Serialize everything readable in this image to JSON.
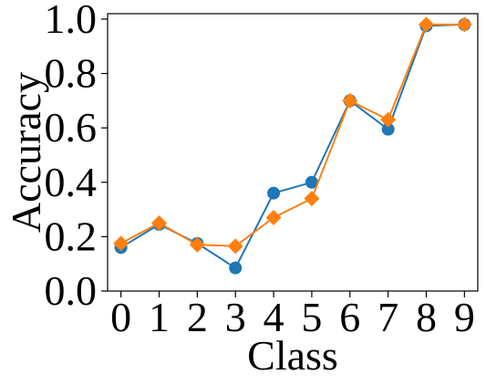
{
  "chart_data": {
    "type": "line",
    "xlabel": "Class",
    "ylabel": "Accuracy",
    "x": [
      0,
      1,
      2,
      3,
      4,
      5,
      6,
      7,
      8,
      9
    ],
    "xlim": [
      -0.35,
      9.35
    ],
    "ylim": [
      0.0,
      1.02
    ],
    "yticks": [
      0.0,
      0.2,
      0.4,
      0.6,
      0.8,
      1.0
    ],
    "ytick_labels": [
      "0.0",
      "0.2",
      "0.4",
      "0.6",
      "0.8",
      "1.0"
    ],
    "xtick_labels": [
      "0",
      "1",
      "2",
      "3",
      "4",
      "5",
      "6",
      "7",
      "8",
      "9"
    ],
    "grid": false,
    "series": [
      {
        "marker": "circle",
        "color": "#1f77b4",
        "values": [
          0.16,
          0.245,
          0.175,
          0.085,
          0.36,
          0.4,
          0.7,
          0.595,
          0.975,
          0.98
        ]
      },
      {
        "marker": "diamond",
        "color": "#ff7f0e",
        "values": [
          0.175,
          0.25,
          0.17,
          0.165,
          0.27,
          0.34,
          0.7,
          0.63,
          0.98,
          0.98
        ]
      }
    ]
  }
}
